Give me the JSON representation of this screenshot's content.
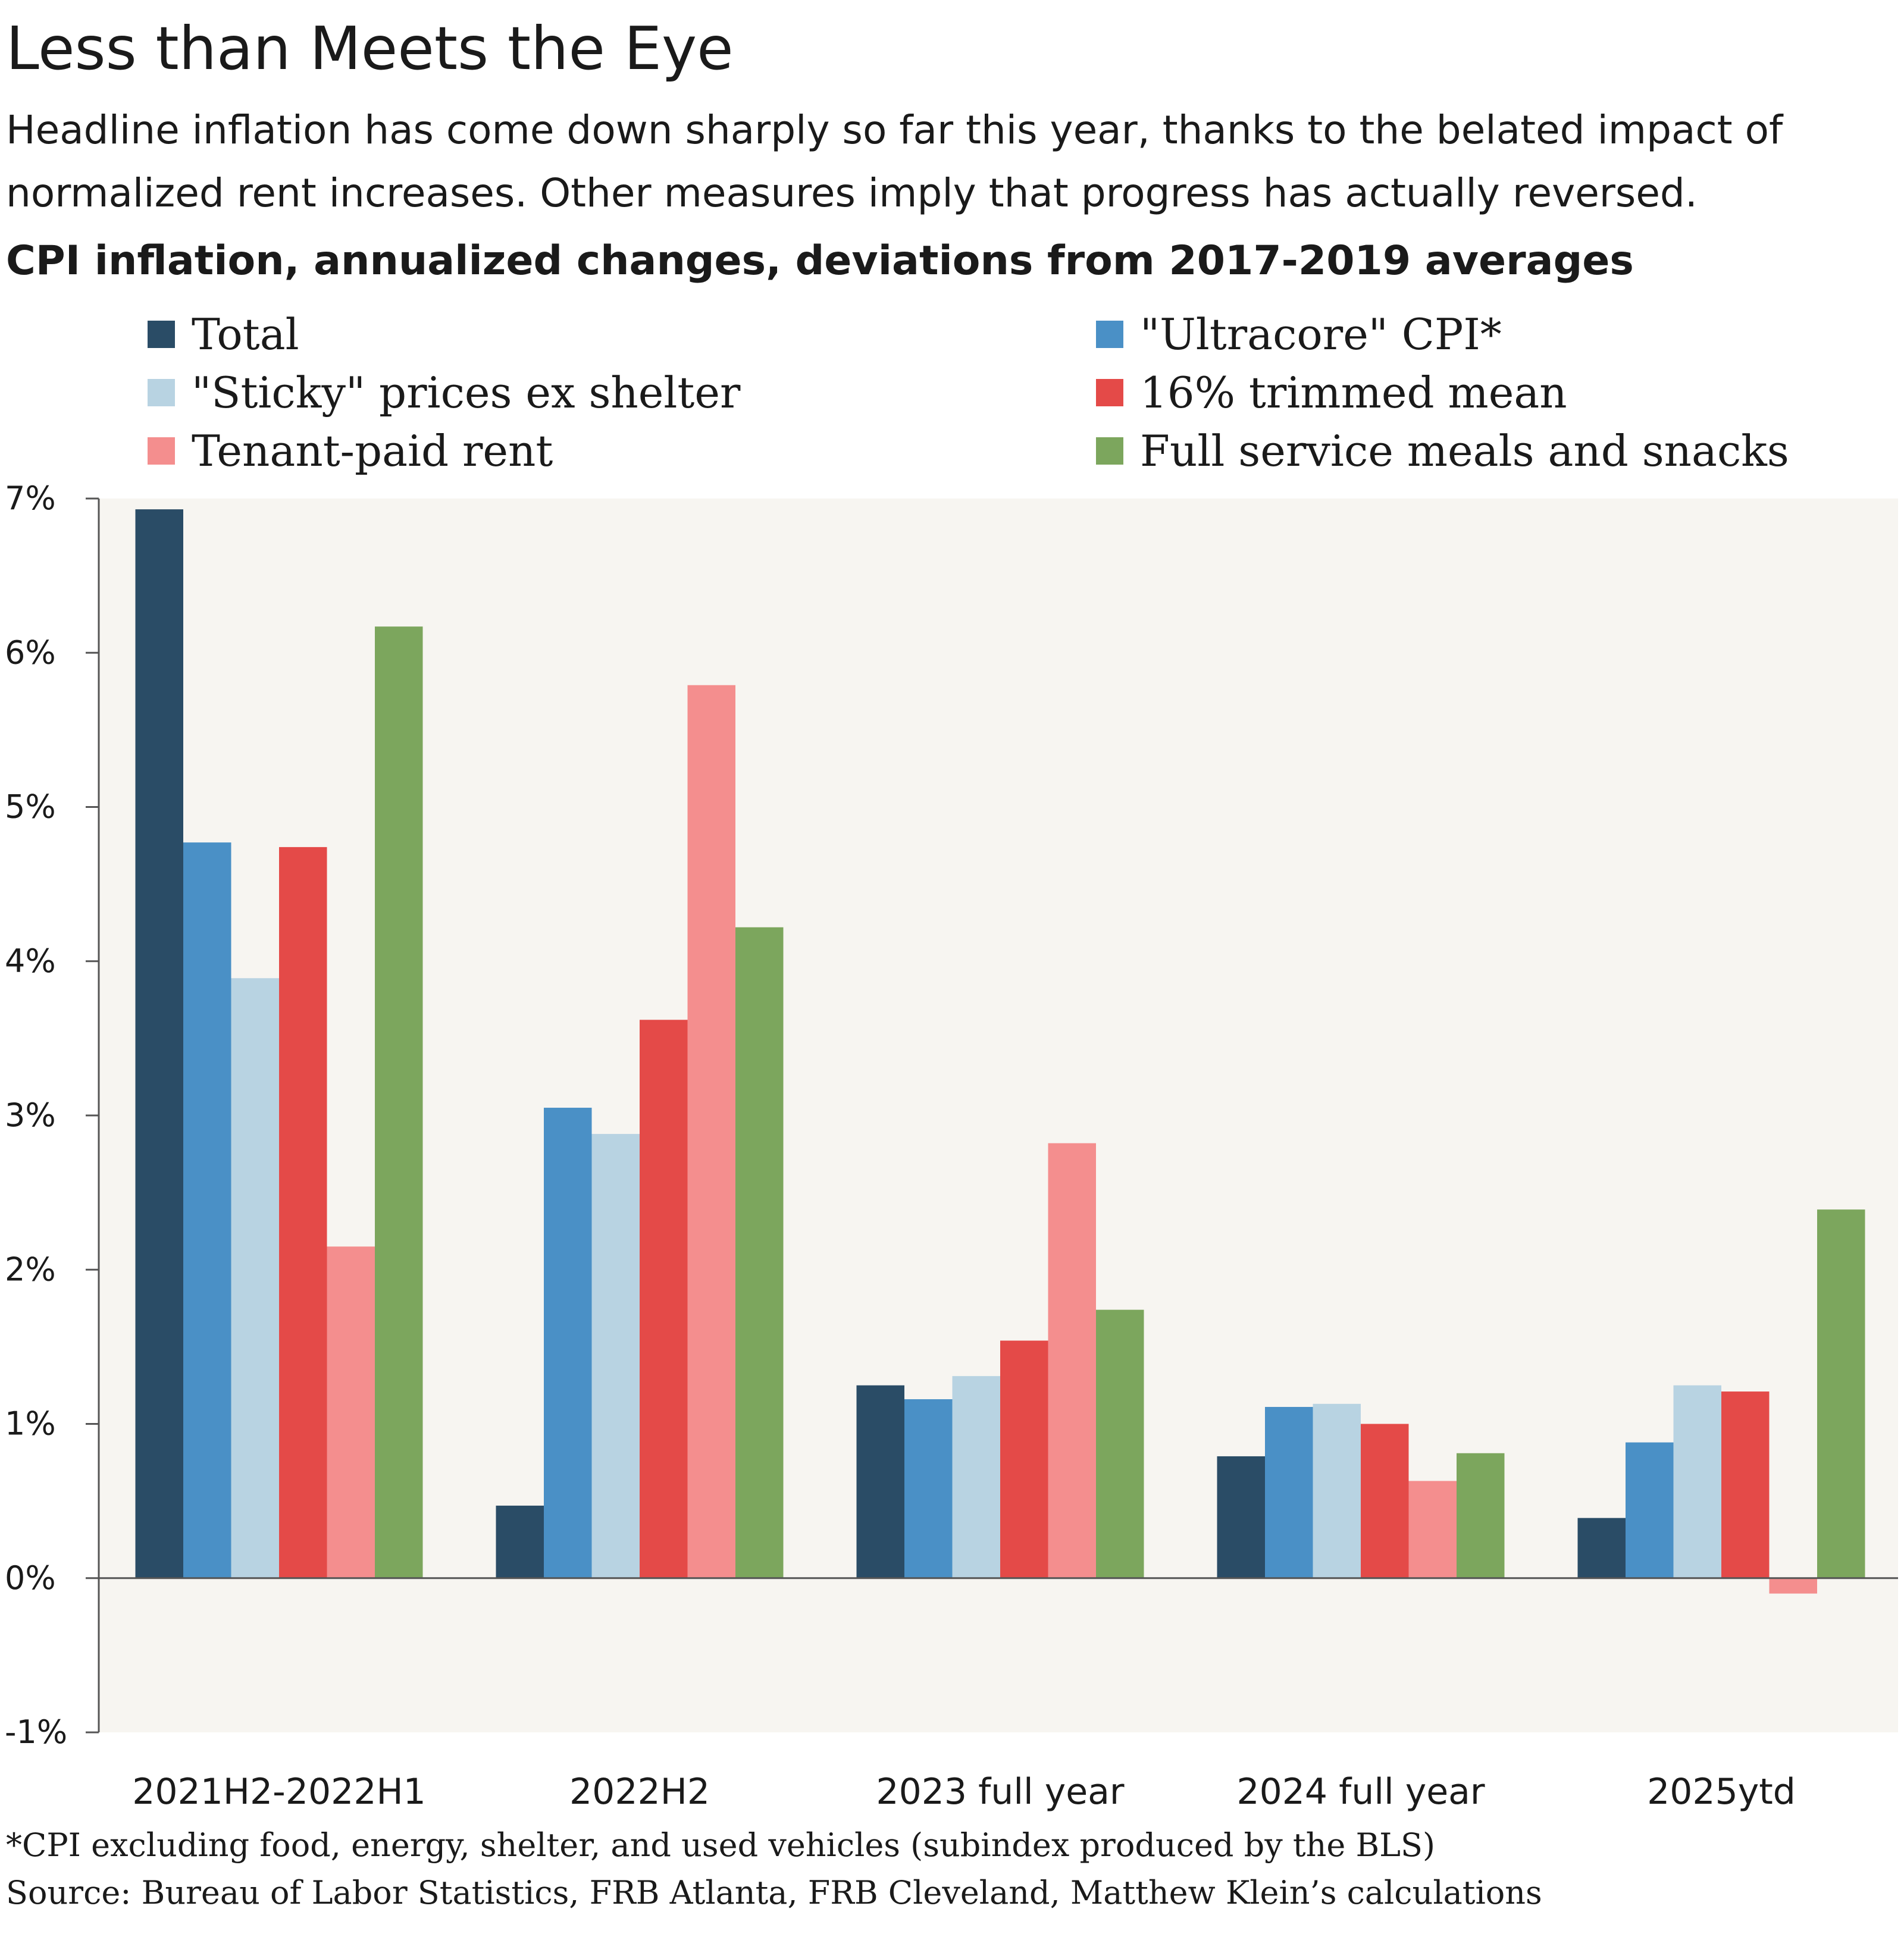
{
  "title": "Less than Meets the Eye",
  "subtitle": "Headline inflation has come down sharply so far this year, thanks to the belated impact of normalized rent increases. Other measures imply that progress has actually reversed.",
  "footnote": "*CPI excluding food, energy, shelter, and used vehicles (subindex produced by the BLS)",
  "source": "Source: Bureau of Labor Statistics, FRB Atlanta, FRB Cleveland, Matthew Klein’s calculations",
  "colors": {
    "plot_background": "#f7f5f1",
    "axis": "#555555",
    "total": "#2a4c66",
    "ultracore": "#4a90c6",
    "sticky": "#b8d3e2",
    "trimmed": "#e44a48",
    "rent": "#f48e8e",
    "meals": "#7ca65d"
  },
  "chart_data": {
    "type": "bar",
    "title": "CPI inflation, annualized changes, deviations from 2017-2019 averages",
    "categories": [
      "2021H2-2022H1",
      "2022H2",
      "2023 full year",
      "2024 full year",
      "2025ytd"
    ],
    "ylim": [
      -1,
      7
    ],
    "yticks": [
      -1,
      0,
      1,
      2,
      3,
      4,
      5,
      6,
      7
    ],
    "ytick_labels": [
      "-1%",
      "0%",
      "1%",
      "2%",
      "3%",
      "4%",
      "5%",
      "6%",
      "7%"
    ],
    "value_unit": "%",
    "grid": false,
    "legend_position": "top",
    "series": [
      {
        "name": "Total",
        "color": "#2a4c66",
        "values": [
          6.93,
          0.47,
          1.25,
          0.79,
          0.39
        ]
      },
      {
        "name": "\"Ultracore\" CPI*",
        "color": "#4a90c6",
        "values": [
          4.77,
          3.05,
          1.16,
          1.11,
          0.88
        ]
      },
      {
        "name": "\"Sticky\" prices ex shelter",
        "color": "#b8d3e2",
        "values": [
          3.89,
          2.88,
          1.31,
          1.13,
          1.25
        ]
      },
      {
        "name": "16% trimmed mean",
        "color": "#e44a48",
        "values": [
          4.74,
          3.62,
          1.54,
          1.0,
          1.21
        ]
      },
      {
        "name": "Tenant-paid rent",
        "color": "#f48e8e",
        "values": [
          2.15,
          5.79,
          2.82,
          0.63,
          -0.1
        ]
      },
      {
        "name": "Full service meals and snacks",
        "color": "#7ca65d",
        "values": [
          6.17,
          4.22,
          1.74,
          0.81,
          2.39
        ]
      }
    ]
  }
}
